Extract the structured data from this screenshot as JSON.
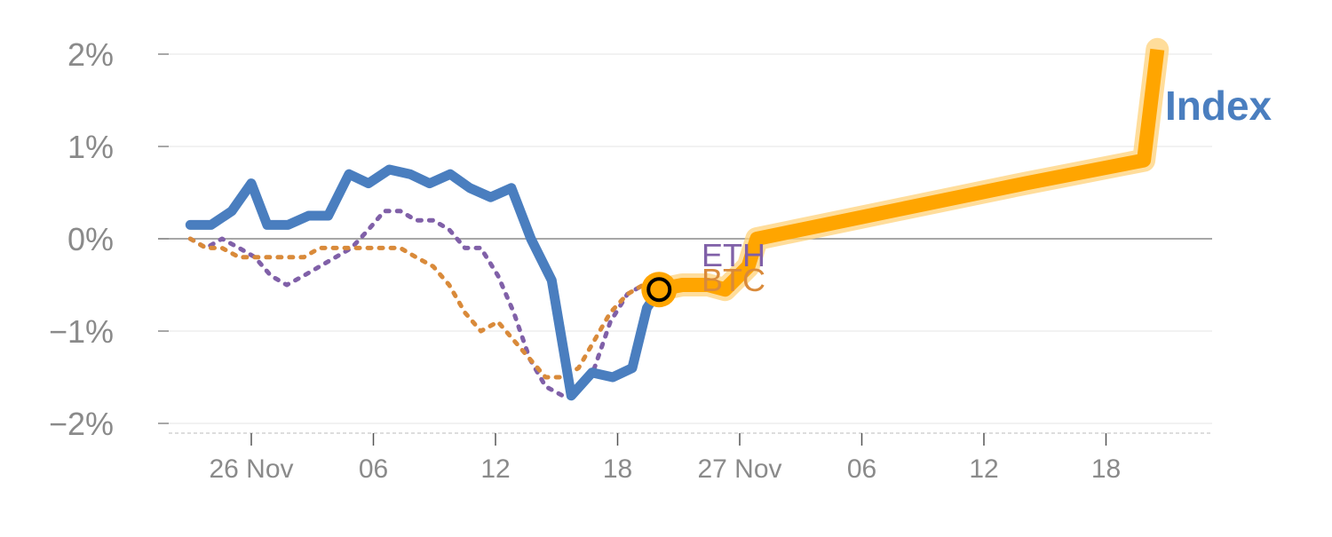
{
  "chart_data": {
    "type": "line",
    "title": "",
    "xlabel": "",
    "ylabel": "",
    "ylim": [
      -2.1,
      2.1
    ],
    "y_ticks": [
      {
        "value": 2,
        "label": "2%"
      },
      {
        "value": 1,
        "label": "1%"
      },
      {
        "value": 0,
        "label": "0%"
      },
      {
        "value": -1,
        "label": "−1%"
      },
      {
        "value": -2,
        "label": "−2%"
      }
    ],
    "xlim": [
      -7.7,
      77.7
    ],
    "x_ticks": [
      {
        "value": 0,
        "label": "26 Nov"
      },
      {
        "value": 10,
        "label": "06"
      },
      {
        "value": 20,
        "label": "12"
      },
      {
        "value": 30,
        "label": "18"
      },
      {
        "value": 40,
        "label": "27 Nov"
      },
      {
        "value": 50,
        "label": "06"
      },
      {
        "value": 60,
        "label": "12"
      },
      {
        "value": 70,
        "label": "18"
      }
    ],
    "grid": true,
    "zero_line": true,
    "series": [
      {
        "name": "ETH",
        "style": "dotted",
        "color": "#8060a8",
        "x": [
          -5,
          -3.7,
          -2.4,
          -1,
          0.3,
          1.6,
          2.9,
          4.3,
          5.6,
          6.9,
          8.2,
          9.6,
          10.9,
          12.2,
          13.5,
          14.9,
          16.2,
          17.5,
          18.8,
          20.2,
          21.5,
          22.8,
          24.1,
          25.5,
          26.8,
          28.1,
          29.4,
          30.8,
          32.1,
          33.4
        ],
        "values": [
          0,
          -0.1,
          0.0,
          -0.1,
          -0.2,
          -0.4,
          -0.5,
          -0.4,
          -0.3,
          -0.2,
          -0.1,
          0.1,
          0.3,
          0.3,
          0.2,
          0.2,
          0.1,
          -0.1,
          -0.1,
          -0.4,
          -0.8,
          -1.3,
          -1.6,
          -1.7,
          -1.6,
          -1.4,
          -0.9,
          -0.6,
          -0.5,
          -0.6
        ]
      },
      {
        "name": "BTC",
        "style": "dotted",
        "color": "#d98a3a",
        "x": [
          -5,
          -3.7,
          -2.4,
          -1,
          0.3,
          1.6,
          2.9,
          4.3,
          5.6,
          6.9,
          8.2,
          9.6,
          10.9,
          12.2,
          13.5,
          14.9,
          16.2,
          17.5,
          18.8,
          20.2,
          21.5,
          22.8,
          24.1,
          25.5,
          26.8,
          28.1,
          29.4,
          30.8,
          32.1,
          33.4
        ],
        "values": [
          0,
          -0.1,
          -0.1,
          -0.2,
          -0.2,
          -0.2,
          -0.2,
          -0.2,
          -0.1,
          -0.1,
          -0.1,
          -0.1,
          -0.1,
          -0.1,
          -0.2,
          -0.3,
          -0.5,
          -0.8,
          -1.0,
          -0.9,
          -1.1,
          -1.3,
          -1.5,
          -1.5,
          -1.4,
          -1.1,
          -0.8,
          -0.6,
          -0.5,
          -0.6
        ]
      },
      {
        "name": "Index",
        "style": "solid",
        "color": "#4a7ebf",
        "x": [
          -5,
          -3.3,
          -1.6,
          0,
          1.3,
          3,
          4.7,
          6.3,
          8,
          9.6,
          11.3,
          13,
          14.6,
          16.3,
          17.9,
          19.6,
          21.3,
          22.9,
          24.6,
          26.2,
          27.9,
          29.6,
          31.2,
          32.4,
          33.4
        ],
        "values": [
          0.15,
          0.15,
          0.3,
          0.6,
          0.15,
          0.15,
          0.25,
          0.25,
          0.7,
          0.6,
          0.75,
          0.7,
          0.6,
          0.7,
          0.55,
          0.45,
          0.55,
          0,
          -0.45,
          -1.7,
          -1.45,
          -1.5,
          -1.4,
          -0.75,
          -0.55
        ]
      },
      {
        "name": "Index projection",
        "style": "highlight",
        "color": "#ffa500",
        "x": [
          33.4,
          35.3,
          37.4,
          38.8,
          40.7,
          41.4,
          52.4,
          63.4,
          73.1,
          74.2
        ],
        "values": [
          -0.55,
          -0.5,
          -0.5,
          -0.55,
          -0.3,
          0.0,
          0.3,
          0.6,
          0.85,
          2.05
        ]
      }
    ],
    "marker": {
      "x": 33.4,
      "y": -0.55
    },
    "series_labels": {
      "eth": "ETH",
      "btc": "BTC",
      "index": "Index"
    },
    "colors": {
      "grid": "#e6e6e6",
      "zero_line": "#8a8a8a",
      "axis": "#dddddd",
      "tick_text": "#8a8a8a",
      "marker_stroke": "#000000",
      "highlight_halo": "#ffd27a"
    }
  }
}
